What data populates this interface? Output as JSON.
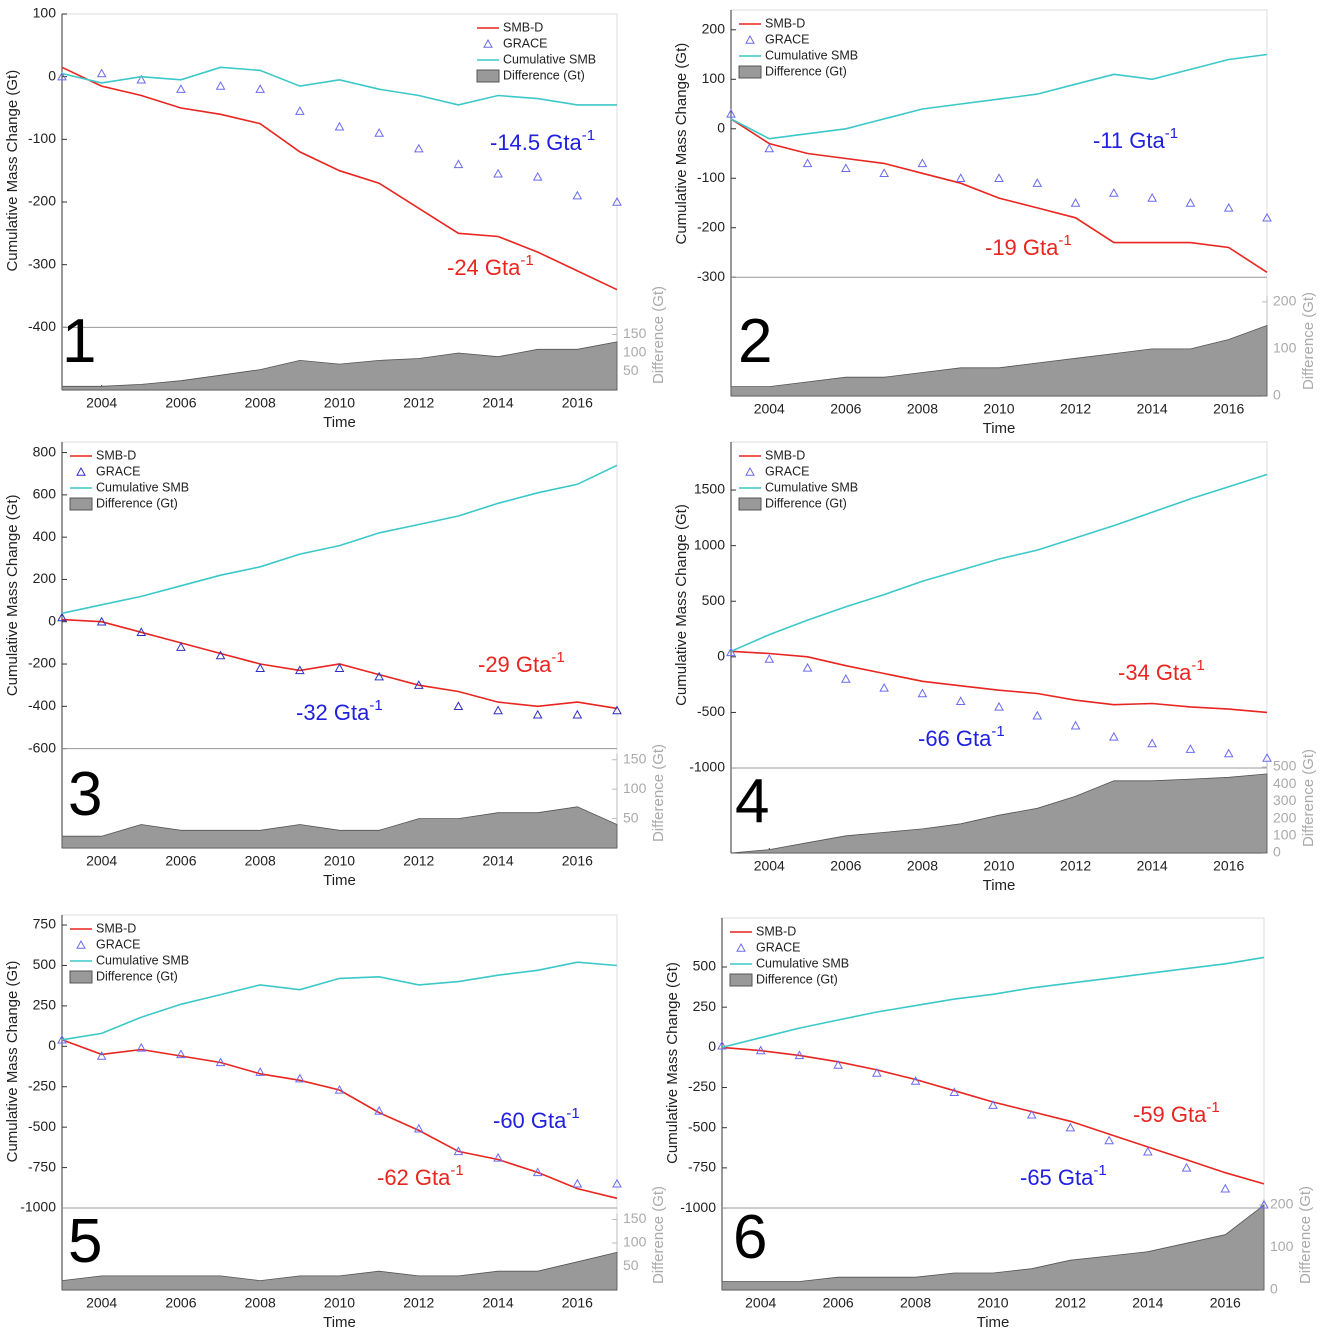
{
  "chart_data": [
    {
      "type": "line",
      "label": "1",
      "ylabel": "Cumulative Mass Change (Gt)",
      "y2label": "Difference (Gt)",
      "xlabel": "Time",
      "legend": "upper right",
      "x": [
        2003,
        2004,
        2005,
        2006,
        2007,
        2008,
        2009,
        2010,
        2011,
        2012,
        2013,
        2014,
        2015,
        2016,
        2017
      ],
      "xlim": [
        2003,
        2017
      ],
      "xticks": [
        2004,
        2006,
        2008,
        2010,
        2012,
        2014,
        2016
      ],
      "ylim": [
        -500,
        100
      ],
      "yticks": [
        -400,
        -300,
        -200,
        -100,
        0,
        100
      ],
      "y2lim": [
        0,
        1016
      ],
      "y2ticks": [
        50,
        100,
        150
      ],
      "series": [
        {
          "name": "SMB-D",
          "type": "line",
          "color": "#e8251f",
          "values": [
            15,
            -15,
            -30,
            -50,
            -60,
            -75,
            -120,
            -150,
            -170,
            -210,
            -250,
            -255,
            -280,
            -310,
            -340
          ]
        },
        {
          "name": "GRACE",
          "type": "scatter",
          "color": "#6b6bf0",
          "values": [
            0,
            5,
            -5,
            -20,
            -15,
            -20,
            -55,
            -80,
            -90,
            -115,
            -140,
            -155,
            -160,
            -190,
            -200
          ]
        },
        {
          "name": "Cumulative SMB",
          "type": "line",
          "color": "#3cc8c8",
          "values": [
            5,
            -10,
            0,
            -5,
            15,
            10,
            -15,
            -5,
            -20,
            -30,
            -45,
            -30,
            -35,
            -45,
            -45
          ]
        },
        {
          "name": "Difference (Gt)",
          "type": "area",
          "axis": "y2",
          "color": "#999999",
          "values": [
            10,
            10,
            15,
            25,
            40,
            55,
            80,
            70,
            80,
            85,
            100,
            90,
            110,
            110,
            130
          ]
        }
      ],
      "annotations": [
        {
          "text": "-14.5 Gta",
          "sup": "-1",
          "color": "#2020e0"
        },
        {
          "text": "-24 Gta",
          "sup": "-1",
          "color": "#e8251f"
        }
      ]
    },
    {
      "type": "line",
      "label": "2",
      "ylabel": "Cumulative Mass Change (Gt)",
      "y2label": "Difference (Gt)",
      "xlabel": "Time",
      "legend": "upper left",
      "x": [
        2003,
        2004,
        2005,
        2006,
        2007,
        2008,
        2009,
        2010,
        2011,
        2012,
        2013,
        2014,
        2015,
        2016,
        2017
      ],
      "xlim": [
        2003,
        2017
      ],
      "xticks": [
        2004,
        2006,
        2008,
        2010,
        2012,
        2014,
        2016
      ],
      "ylim": [
        -540,
        240
      ],
      "yticks": [
        -300,
        -200,
        -100,
        0,
        100,
        200
      ],
      "y2lim": [
        0,
        820
      ],
      "y2ticks": [
        0,
        100,
        200
      ],
      "series": [
        {
          "name": "SMB-D",
          "type": "line",
          "color": "#e8251f",
          "values": [
            20,
            -30,
            -50,
            -60,
            -70,
            -90,
            -110,
            -140,
            -160,
            -180,
            -230,
            -230,
            -230,
            -240,
            -290
          ]
        },
        {
          "name": "GRACE",
          "type": "scatter",
          "color": "#6b6bf0",
          "values": [
            30,
            -40,
            -70,
            -80,
            -90,
            -70,
            -100,
            -100,
            -110,
            -150,
            -130,
            -140,
            -150,
            -160,
            -180
          ]
        },
        {
          "name": "Cumulative SMB",
          "type": "line",
          "color": "#3cc8c8",
          "values": [
            20,
            -20,
            -10,
            0,
            20,
            40,
            50,
            60,
            70,
            90,
            110,
            100,
            120,
            140,
            150
          ]
        },
        {
          "name": "Difference (Gt)",
          "type": "area",
          "axis": "y2",
          "color": "#999999",
          "values": [
            20,
            20,
            30,
            40,
            40,
            50,
            60,
            60,
            70,
            80,
            90,
            100,
            100,
            120,
            150
          ]
        }
      ],
      "annotations": [
        {
          "text": "-11 Gta",
          "sup": "-1",
          "color": "#2020e0"
        },
        {
          "text": "-19 Gta",
          "sup": "-1",
          "color": "#e8251f"
        }
      ]
    },
    {
      "type": "line",
      "label": "3",
      "ylabel": "Cumulative Mass Change (Gt)",
      "y2label": "Difference (Gt)",
      "xlabel": "Time",
      "legend": "upper left",
      "x": [
        2003,
        2004,
        2005,
        2006,
        2007,
        2008,
        2009,
        2010,
        2011,
        2012,
        2013,
        2014,
        2015,
        2016,
        2017
      ],
      "xlim": [
        2003,
        2017
      ],
      "xticks": [
        2004,
        2006,
        2008,
        2010,
        2012,
        2014,
        2016
      ],
      "ylim": [
        -1070,
        850
      ],
      "yticks": [
        -600,
        -400,
        -200,
        0,
        200,
        400,
        600,
        800
      ],
      "y2lim": [
        0,
        690
      ],
      "y2ticks": [
        50,
        100,
        150
      ],
      "series": [
        {
          "name": "SMB-D",
          "type": "line",
          "color": "#e8251f",
          "values": [
            10,
            0,
            -50,
            -100,
            -150,
            -200,
            -230,
            -200,
            -250,
            -300,
            -330,
            -380,
            -400,
            -380,
            -410
          ]
        },
        {
          "name": "GRACE",
          "type": "scatter",
          "color": "#3030c0",
          "values": [
            20,
            0,
            -50,
            -120,
            -160,
            -220,
            -230,
            -220,
            -260,
            -300,
            -400,
            -420,
            -440,
            -440,
            -420
          ]
        },
        {
          "name": "Cumulative SMB",
          "type": "line",
          "color": "#3cc8c8",
          "values": [
            40,
            80,
            120,
            170,
            220,
            260,
            320,
            360,
            420,
            460,
            500,
            560,
            610,
            650,
            740
          ]
        },
        {
          "name": "Difference (Gt)",
          "type": "area",
          "axis": "y2",
          "color": "#999999",
          "values": [
            20,
            20,
            40,
            30,
            30,
            30,
            40,
            30,
            30,
            50,
            50,
            60,
            60,
            70,
            40
          ]
        }
      ],
      "annotations": [
        {
          "text": "-29 Gta",
          "sup": "-1",
          "color": "#e8251f"
        },
        {
          "text": "-32 Gta",
          "sup": "-1",
          "color": "#2020e0"
        }
      ]
    },
    {
      "type": "line",
      "label": "4",
      "ylabel": "Cumulative Mass Change (Gt)",
      "y2label": "Difference (Gt)",
      "xlabel": "Time",
      "legend": "upper left",
      "x": [
        2003,
        2004,
        2005,
        2006,
        2007,
        2008,
        2009,
        2010,
        2011,
        2012,
        2013,
        2014,
        2015,
        2016,
        2017
      ],
      "xlim": [
        2003,
        2017
      ],
      "xticks": [
        2004,
        2006,
        2008,
        2010,
        2012,
        2014,
        2016
      ],
      "ylim": [
        -1764,
        1932
      ],
      "yticks": [
        -1000,
        -500,
        0,
        500,
        1000,
        1500
      ],
      "y2lim": [
        0,
        2390
      ],
      "y2ticks": [
        0,
        100,
        200,
        300,
        400,
        500
      ],
      "series": [
        {
          "name": "SMB-D",
          "type": "line",
          "color": "#e8251f",
          "values": [
            50,
            30,
            0,
            -80,
            -150,
            -220,
            -260,
            -300,
            -330,
            -390,
            -430,
            -420,
            -450,
            -470,
            -500
          ]
        },
        {
          "name": "GRACE",
          "type": "scatter",
          "color": "#6b6bf0",
          "values": [
            40,
            -20,
            -100,
            -200,
            -280,
            -330,
            -400,
            -450,
            -530,
            -620,
            -720,
            -780,
            -830,
            -870,
            -910
          ]
        },
        {
          "name": "Cumulative SMB",
          "type": "line",
          "color": "#3cc8c8",
          "values": [
            50,
            200,
            330,
            450,
            560,
            680,
            780,
            880,
            960,
            1070,
            1180,
            1300,
            1420,
            1530,
            1640
          ]
        },
        {
          "name": "Difference (Gt)",
          "type": "area",
          "axis": "y2",
          "color": "#999999",
          "values": [
            0,
            20,
            60,
            100,
            120,
            140,
            170,
            220,
            260,
            330,
            420,
            420,
            430,
            440,
            460
          ]
        }
      ],
      "annotations": [
        {
          "text": "-34 Gta",
          "sup": "-1",
          "color": "#e8251f"
        },
        {
          "text": "-66 Gta",
          "sup": "-1",
          "color": "#2020e0"
        }
      ]
    },
    {
      "type": "line",
      "label": "5",
      "ylabel": "Cumulative Mass Change (Gt)",
      "y2label": "Difference (Gt)",
      "xlabel": "Time",
      "legend": "upper left",
      "x": [
        2003,
        2004,
        2005,
        2006,
        2007,
        2008,
        2009,
        2010,
        2011,
        2012,
        2013,
        2014,
        2015,
        2016,
        2017
      ],
      "xlim": [
        2003,
        2017
      ],
      "xticks": [
        2004,
        2006,
        2008,
        2010,
        2012,
        2014,
        2016
      ],
      "ylim": [
        -1507,
        812
      ],
      "yticks": [
        -1000,
        -750,
        -500,
        -250,
        0,
        250,
        500,
        750
      ],
      "y2lim": [
        0,
        798
      ],
      "y2ticks": [
        50,
        100,
        150
      ],
      "series": [
        {
          "name": "SMB-D",
          "type": "line",
          "color": "#e8251f",
          "values": [
            40,
            -50,
            -20,
            -60,
            -100,
            -170,
            -210,
            -270,
            -410,
            -520,
            -650,
            -700,
            -780,
            -880,
            -940
          ]
        },
        {
          "name": "GRACE",
          "type": "scatter",
          "color": "#6b6bf0",
          "values": [
            40,
            -60,
            -10,
            -50,
            -100,
            -160,
            -200,
            -270,
            -400,
            -510,
            -650,
            -690,
            -780,
            -850,
            -850
          ]
        },
        {
          "name": "Cumulative SMB",
          "type": "line",
          "color": "#3cc8c8",
          "values": [
            40,
            80,
            180,
            260,
            320,
            380,
            350,
            420,
            430,
            380,
            400,
            440,
            470,
            520,
            500
          ]
        },
        {
          "name": "Difference (Gt)",
          "type": "area",
          "axis": "y2",
          "color": "#999999",
          "values": [
            20,
            30,
            30,
            30,
            30,
            20,
            30,
            30,
            40,
            30,
            30,
            40,
            40,
            60,
            80
          ]
        }
      ],
      "annotations": [
        {
          "text": "-60 Gta",
          "sup": "-1",
          "color": "#2020e0"
        },
        {
          "text": "-62 Gta",
          "sup": "-1",
          "color": "#e8251f"
        }
      ]
    },
    {
      "type": "line",
      "label": "6",
      "ylabel": "Cumulative Mass Change (Gt)",
      "y2label": "Difference (Gt)",
      "xlabel": "Time",
      "legend": "upper left",
      "x": [
        2003,
        2004,
        2005,
        2006,
        2007,
        2008,
        2009,
        2010,
        2011,
        2012,
        2013,
        2014,
        2015,
        2016,
        2017
      ],
      "xlim": [
        2003,
        2017
      ],
      "xticks": [
        2004,
        2006,
        2008,
        2010,
        2012,
        2014,
        2016
      ],
      "ylim": [
        -1510,
        805
      ],
      "yticks": [
        -1000,
        -750,
        -500,
        -250,
        0,
        250,
        500
      ],
      "y2lim": [
        0,
        875
      ],
      "y2ticks": [
        0,
        100,
        200
      ],
      "series": [
        {
          "name": "SMB-D",
          "type": "line",
          "color": "#e8251f",
          "values": [
            0,
            -20,
            -50,
            -90,
            -140,
            -200,
            -270,
            -340,
            -400,
            -460,
            -540,
            -620,
            -700,
            -780,
            -850
          ]
        },
        {
          "name": "GRACE",
          "type": "scatter",
          "color": "#6b6bf0",
          "values": [
            10,
            -20,
            -50,
            -110,
            -160,
            -210,
            -280,
            -360,
            -420,
            -500,
            -580,
            -650,
            -750,
            -880,
            -980
          ]
        },
        {
          "name": "Cumulative SMB",
          "type": "line",
          "color": "#3cc8c8",
          "values": [
            0,
            60,
            120,
            170,
            220,
            260,
            300,
            330,
            370,
            400,
            430,
            460,
            490,
            520,
            560
          ]
        },
        {
          "name": "Difference (Gt)",
          "type": "area",
          "axis": "y2",
          "color": "#999999",
          "values": [
            20,
            20,
            20,
            30,
            30,
            30,
            40,
            40,
            50,
            70,
            80,
            90,
            110,
            130,
            200
          ]
        }
      ],
      "annotations": [
        {
          "text": "-59 Gta",
          "sup": "-1",
          "color": "#e8251f"
        },
        {
          "text": "-65 Gta",
          "sup": "-1",
          "color": "#2020e0"
        }
      ]
    }
  ]
}
